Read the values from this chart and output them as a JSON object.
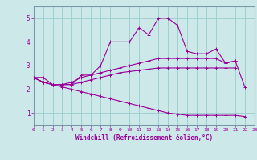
{
  "xlabel": "Windchill (Refroidissement éolien,°C)",
  "bg_color": "#cce8e8",
  "line_color": "#990099",
  "grid_color": "#99cccc",
  "spine_color": "#7799aa",
  "xlim": [
    0,
    23
  ],
  "ylim": [
    0.5,
    5.5
  ],
  "yticks": [
    1,
    2,
    3,
    4,
    5
  ],
  "xticks": [
    0,
    1,
    2,
    3,
    4,
    5,
    6,
    7,
    8,
    9,
    10,
    11,
    12,
    13,
    14,
    15,
    16,
    17,
    18,
    19,
    20,
    21,
    22,
    23
  ],
  "series": [
    [
      2.5,
      2.5,
      2.2,
      2.2,
      2.2,
      2.6,
      2.6,
      3.0,
      4.0,
      4.0,
      4.0,
      4.6,
      4.3,
      5.0,
      5.0,
      4.7,
      3.6,
      3.5,
      3.5,
      3.7,
      3.1,
      3.2,
      2.1,
      null
    ],
    [
      2.5,
      2.3,
      2.2,
      2.2,
      2.3,
      2.5,
      2.6,
      2.7,
      2.8,
      2.9,
      3.0,
      3.1,
      3.2,
      3.3,
      3.3,
      3.3,
      3.3,
      3.3,
      3.3,
      3.3,
      3.1,
      3.2,
      null,
      null
    ],
    [
      2.5,
      2.3,
      2.2,
      2.2,
      2.2,
      2.3,
      2.4,
      2.5,
      2.6,
      2.7,
      2.75,
      2.8,
      2.85,
      2.9,
      2.9,
      2.9,
      2.9,
      2.9,
      2.9,
      2.9,
      2.9,
      2.9,
      null,
      null
    ],
    [
      2.5,
      2.3,
      2.2,
      2.1,
      2.0,
      1.9,
      1.8,
      1.7,
      1.6,
      1.5,
      1.4,
      1.3,
      1.2,
      1.1,
      1.0,
      0.95,
      0.9,
      0.9,
      0.9,
      0.9,
      0.9,
      0.9,
      0.85,
      null
    ]
  ]
}
